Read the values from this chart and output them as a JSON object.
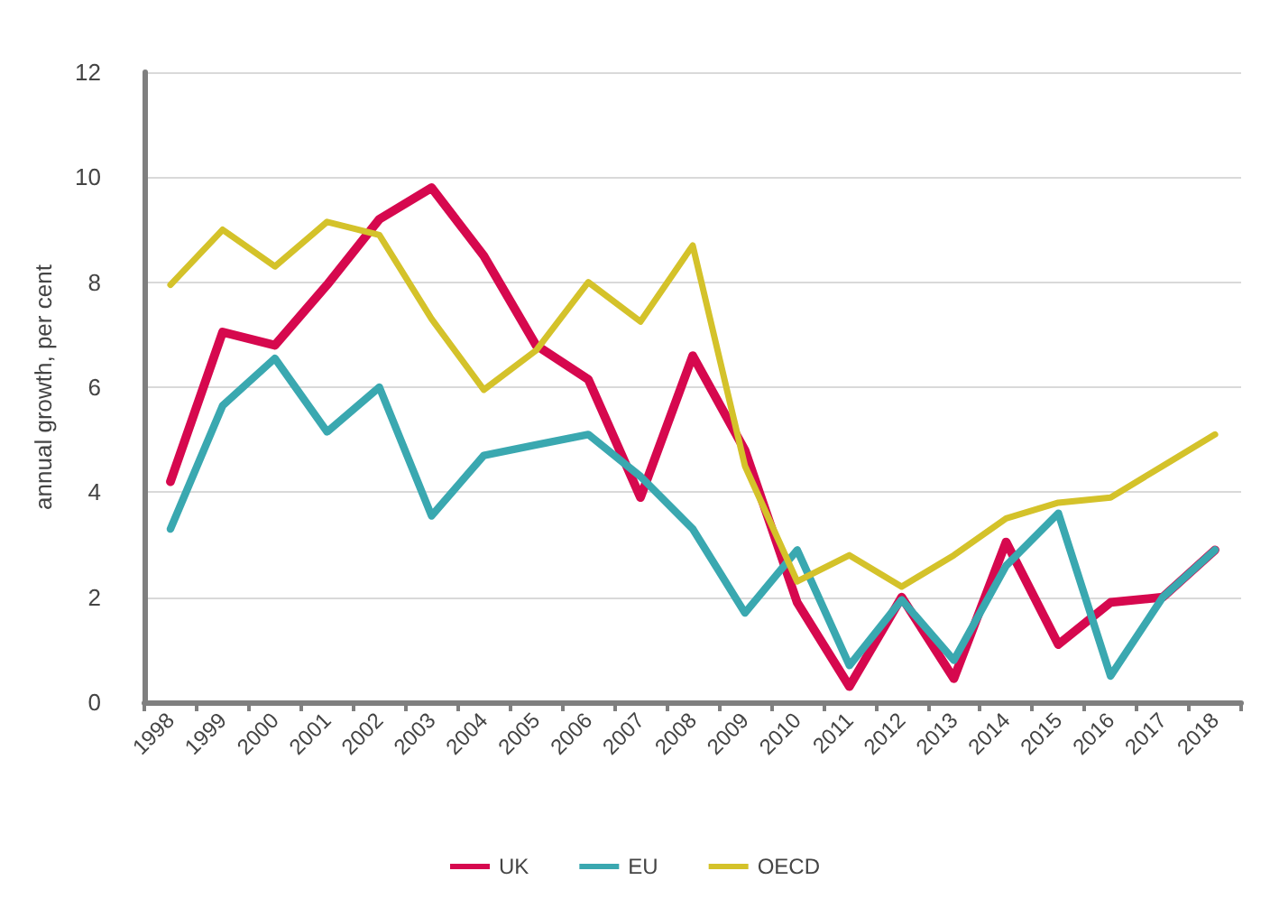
{
  "chart_data": {
    "type": "line",
    "ylabel": "annual growth, per cent",
    "categories": [
      "1998",
      "1999",
      "2000",
      "2001",
      "2002",
      "2003",
      "2004",
      "2005",
      "2006",
      "2007",
      "2008",
      "2009",
      "2010",
      "2011",
      "2012",
      "2013",
      "2014",
      "2015",
      "2016",
      "2017",
      "2018"
    ],
    "series": [
      {
        "name": "UK",
        "color": "#d6084e",
        "values": [
          4.2,
          7.05,
          6.8,
          7.95,
          9.2,
          9.8,
          8.5,
          6.8,
          6.15,
          3.9,
          6.6,
          4.8,
          1.9,
          0.3,
          2.0,
          0.45,
          3.05,
          1.1,
          1.9,
          2.0,
          2.9
        ]
      },
      {
        "name": "EU",
        "color": "#3aa8b0",
        "values": [
          3.3,
          5.65,
          6.55,
          5.15,
          6.0,
          3.55,
          4.7,
          4.9,
          5.1,
          4.3,
          3.3,
          1.7,
          2.9,
          0.7,
          1.95,
          0.8,
          2.6,
          3.6,
          0.5,
          2.0,
          2.9
        ]
      },
      {
        "name": "OECD",
        "color": "#d4c22a",
        "values": [
          7.95,
          9.0,
          8.3,
          9.15,
          8.9,
          7.3,
          5.95,
          6.7,
          8.0,
          7.25,
          8.7,
          4.5,
          2.3,
          2.8,
          2.2,
          2.8,
          3.5,
          3.8,
          3.9,
          4.5,
          5.1
        ]
      }
    ],
    "ylim": [
      0,
      12
    ],
    "yticks": [
      0,
      2,
      4,
      6,
      8,
      10,
      12
    ],
    "grid": "y",
    "legend": "bottom",
    "marker": "none",
    "line_style": "solid"
  }
}
